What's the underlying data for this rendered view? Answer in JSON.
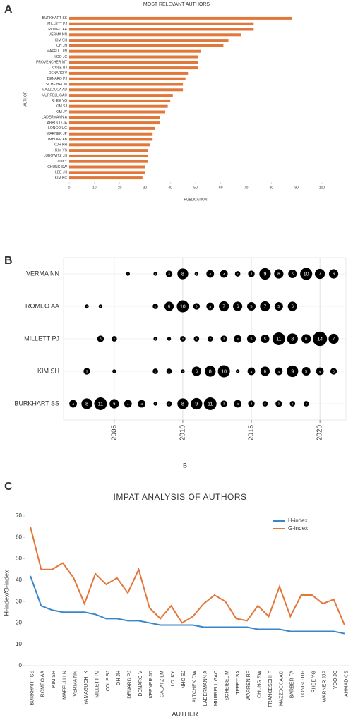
{
  "chart_data": [
    {
      "type": "bar",
      "panel": "A",
      "title": "MOST RELEVANT AUTHORS",
      "orientation": "horizontal",
      "x_label": "PUBLICATION",
      "y_label": "AUTHOR",
      "color": "#e2773a",
      "categories": [
        "BURKHART SS",
        "MILLETT PJ",
        "ROMEO AA",
        "VERMA NN",
        "KIM SH",
        "OH JH",
        "MAFFULLI N",
        "YOO JC",
        "PROVENCHER MT",
        "COLE BJ",
        "DENARO V",
        "DENARD PJ",
        "SCHEIBEL M",
        "MAZZOCCA AD",
        "MURRELL GAC",
        "RHEE YG",
        "KIM SJ",
        "KIM JY",
        "LADERMANN A",
        "ABBOUD JA",
        "LONGO UG",
        "WARNER JP",
        "IMHOFF AB",
        "KOH KH",
        "KIM YS",
        "LUBOWITZ JH",
        "LO IKY",
        "CHUNG SW",
        "LEE JH",
        "KIM KC"
      ],
      "values": [
        88,
        73,
        73,
        68,
        63,
        61,
        52,
        51,
        51,
        51,
        47,
        46,
        45,
        45,
        41,
        40,
        39,
        38,
        36,
        36,
        34,
        33,
        33,
        32,
        31,
        31,
        31,
        30,
        30,
        29
      ],
      "xlim": [
        0,
        100
      ],
      "xticks": [
        0,
        10,
        20,
        30,
        40,
        50,
        60,
        70,
        80,
        90,
        100
      ]
    },
    {
      "type": "bubble",
      "panel": "B",
      "x_label": "B",
      "color": "#000000",
      "grid": true,
      "xlim": [
        2001.3,
        2021.9
      ],
      "xticks": [
        2005,
        2010,
        2015,
        2020
      ],
      "series": [
        {
          "name": "BURKHART SS",
          "x": [
            2002,
            2003,
            2004,
            2005,
            2006,
            2007,
            2008,
            2009,
            2010,
            2011,
            2012,
            2013,
            2014,
            2015,
            2016,
            2017,
            2018,
            2019
          ],
          "values": [
            4,
            8,
            11,
            6,
            4,
            4,
            1,
            2,
            8,
            9,
            11,
            3,
            4,
            3,
            2,
            3,
            2,
            2
          ]
        },
        {
          "name": "KIM SH",
          "x": [
            2003,
            2005,
            2008,
            2009,
            2010,
            2011,
            2012,
            2013,
            2014,
            2015,
            2016,
            2017,
            2018,
            2019,
            2020,
            2021
          ],
          "values": [
            3,
            1,
            2,
            2,
            1,
            6,
            8,
            10,
            1,
            4,
            6,
            4,
            9,
            5,
            4,
            3
          ]
        },
        {
          "name": "MILLETT PJ",
          "x": [
            2004,
            2005,
            2008,
            2009,
            2010,
            2011,
            2012,
            2013,
            2014,
            2015,
            2016,
            2017,
            2018,
            2019,
            2020,
            2021
          ],
          "values": [
            3,
            2,
            1,
            1,
            2,
            2,
            2,
            3,
            4,
            5,
            5,
            11,
            8,
            6,
            14,
            7
          ]
        },
        {
          "name": "ROMEO AA",
          "x": [
            2003,
            2004,
            2008,
            2009,
            2010,
            2011,
            2012,
            2013,
            2014,
            2015,
            2016,
            2017,
            2018
          ],
          "values": [
            1,
            1,
            2,
            6,
            10,
            3,
            4,
            7,
            6,
            5,
            7,
            5,
            6
          ]
        },
        {
          "name": "VERMA NN",
          "x": [
            2006,
            2008,
            2009,
            2010,
            2011,
            2012,
            2013,
            2014,
            2015,
            2016,
            2017,
            2018,
            2019,
            2020,
            2021
          ],
          "values": [
            1,
            1,
            3,
            8,
            1,
            4,
            4,
            2,
            3,
            9,
            6,
            5,
            10,
            7,
            6
          ]
        }
      ]
    },
    {
      "type": "line",
      "panel": "C",
      "title": "IMPAT ANALYSIS OF AUTHORS",
      "x_label": "AUTHER",
      "y_label": "H-index/G-index",
      "legend": "top-right",
      "categories": [
        "BURKHART SS",
        "ROMEO AA",
        "KIM SH",
        "MAFFULLI N",
        "VERMA NN",
        "YAMAGUCHI K",
        "MILLETT PJ",
        "COLE BJ",
        "OH JH",
        "DENARD PJ",
        "DENARO V",
        "KEENER JD",
        "GALATZ LM",
        "LO IKY",
        "NHO SJ",
        "ALTCHEK DW",
        "LADERMANN A",
        "MURRELL GAC",
        "SCHEIBEL M",
        "TEFEY SA",
        "WARREN RF",
        "CHUNG SW",
        "FRANCESCHI F",
        "MAZZOCCA AD",
        "BARBER FA",
        "LONGO UG",
        "RHEE YG",
        "WARNER JJP",
        "YOO JC",
        "AHMAD CS"
      ],
      "series": [
        {
          "name": "H-index",
          "color": "#3a86c8",
          "values": [
            42,
            28,
            26,
            25,
            25,
            25,
            24,
            22,
            22,
            21,
            21,
            20,
            19,
            19,
            19,
            19,
            18,
            18,
            18,
            18,
            18,
            17,
            17,
            17,
            16,
            16,
            16,
            16,
            16,
            15
          ]
        },
        {
          "name": "G-index",
          "color": "#e2773a",
          "values": [
            65,
            45,
            45,
            48,
            41,
            29,
            43,
            38,
            41,
            34,
            45,
            27,
            22,
            28,
            20,
            23,
            29,
            33,
            30,
            22,
            21,
            28,
            23,
            37,
            23,
            33,
            33,
            29,
            31,
            19
          ]
        }
      ],
      "ylim": [
        0,
        70
      ],
      "yticks": [
        0,
        10,
        20,
        30,
        40,
        50,
        60,
        70
      ]
    }
  ]
}
